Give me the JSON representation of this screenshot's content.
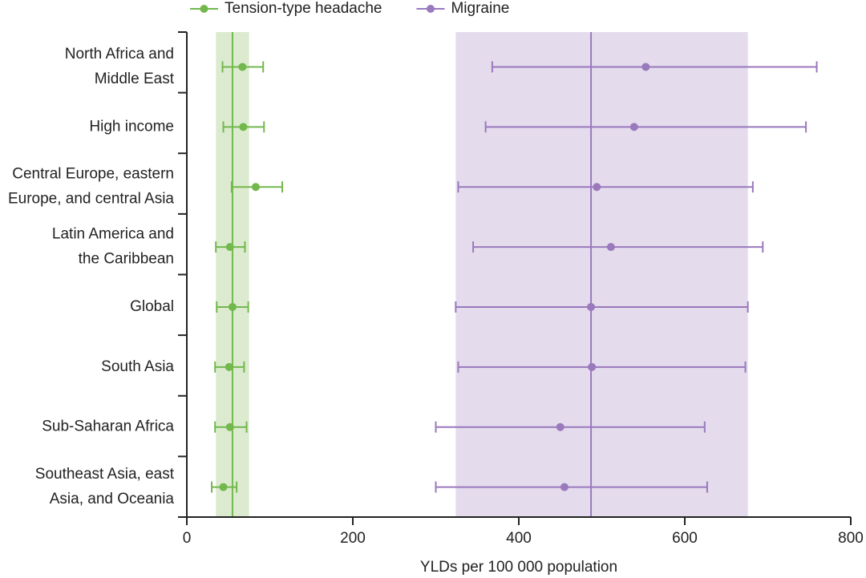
{
  "chart_data": {
    "type": "forest",
    "categories": [
      [
        "North Africa and",
        "Middle East"
      ],
      [
        "High income"
      ],
      [
        "Central Europe, eastern",
        "Europe, and central Asia"
      ],
      [
        "Latin America and",
        "the Caribbean"
      ],
      [
        "Global"
      ],
      [
        "South Asia"
      ],
      [
        "Sub-Saharan Africa"
      ],
      [
        "Southeast Asia, east",
        "Asia, and Oceania"
      ]
    ],
    "series": [
      {
        "name": "Tension-type headache",
        "color": "#72b84d",
        "band_color": "#dcebcf",
        "values": [
          67,
          68,
          83,
          52,
          55,
          51,
          52,
          44
        ],
        "lower": [
          43,
          44,
          54,
          35,
          36,
          34,
          34,
          30
        ],
        "upper": [
          92,
          93,
          115,
          70,
          74,
          69,
          72,
          60
        ],
        "band": [
          35,
          75
        ],
        "reference": 55
      },
      {
        "name": "Migraine",
        "color": "#9a79bd",
        "band_color": "#e4dced",
        "values": [
          553,
          539,
          494,
          511,
          487,
          488,
          450,
          455
        ],
        "lower": [
          368,
          360,
          327,
          345,
          324,
          327,
          300,
          300
        ],
        "upper": [
          759,
          746,
          682,
          694,
          676,
          673,
          624,
          627
        ],
        "band": [
          324,
          676
        ],
        "reference": 487
      }
    ],
    "xlim": [
      0,
      800
    ],
    "xticks": [
      0,
      200,
      400,
      600,
      800
    ],
    "xlabel": "YLDs per 100 000 population"
  }
}
